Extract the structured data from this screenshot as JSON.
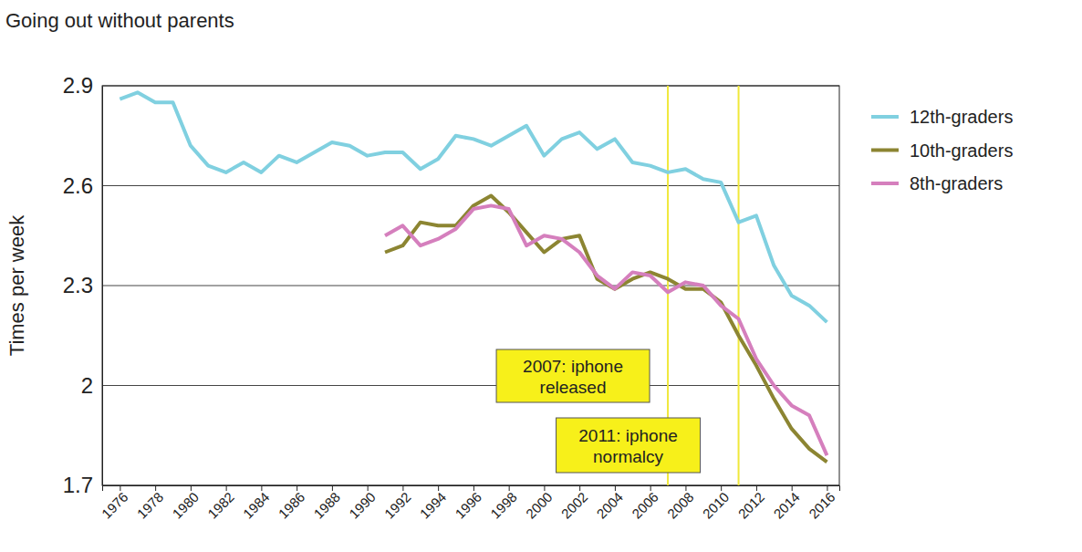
{
  "chart_data": {
    "type": "line",
    "title": "Going out without parents",
    "y_label": "Times per week",
    "x": [
      1976,
      1977,
      1978,
      1979,
      1980,
      1981,
      1982,
      1983,
      1984,
      1985,
      1986,
      1987,
      1988,
      1989,
      1990,
      1991,
      1992,
      1993,
      1994,
      1995,
      1996,
      1997,
      1998,
      1999,
      2000,
      2001,
      2002,
      2003,
      2004,
      2005,
      2006,
      2007,
      2008,
      2009,
      2010,
      2011,
      2012,
      2013,
      2014,
      2015,
      2016
    ],
    "series": [
      {
        "name": "12th-graders",
        "color": "#80d0e0",
        "values": [
          2.86,
          2.88,
          2.85,
          2.85,
          2.72,
          2.66,
          2.64,
          2.67,
          2.64,
          2.69,
          2.67,
          2.7,
          2.73,
          2.72,
          2.69,
          2.7,
          2.7,
          2.65,
          2.68,
          2.75,
          2.74,
          2.72,
          2.75,
          2.78,
          2.69,
          2.74,
          2.76,
          2.71,
          2.74,
          2.67,
          2.66,
          2.64,
          2.65,
          2.62,
          2.61,
          2.49,
          2.51,
          2.36,
          2.27,
          2.24,
          2.19
        ]
      },
      {
        "name": "10th-graders",
        "color": "#8c8532",
        "values": [
          null,
          null,
          null,
          null,
          null,
          null,
          null,
          null,
          null,
          null,
          null,
          null,
          null,
          null,
          null,
          2.4,
          2.42,
          2.49,
          2.48,
          2.48,
          2.54,
          2.57,
          2.52,
          2.46,
          2.4,
          2.44,
          2.45,
          2.32,
          2.29,
          2.32,
          2.34,
          2.32,
          2.29,
          2.29,
          2.25,
          2.15,
          2.06,
          1.96,
          1.87,
          1.81,
          1.77
        ]
      },
      {
        "name": "8th-graders",
        "color": "#d57fbd",
        "values": [
          null,
          null,
          null,
          null,
          null,
          null,
          null,
          null,
          null,
          null,
          null,
          null,
          null,
          null,
          null,
          2.45,
          2.48,
          2.42,
          2.44,
          2.47,
          2.53,
          2.54,
          2.53,
          2.42,
          2.45,
          2.44,
          2.4,
          2.33,
          2.29,
          2.34,
          2.33,
          2.28,
          2.31,
          2.3,
          2.24,
          2.2,
          2.08,
          2.0,
          1.94,
          1.91,
          1.79
        ]
      }
    ],
    "xlim": [
      1975,
      2016.7
    ],
    "xticks": [
      1976,
      1978,
      1980,
      1982,
      1984,
      1986,
      1988,
      1990,
      1992,
      1994,
      1996,
      1998,
      2000,
      2002,
      2004,
      2006,
      2008,
      2010,
      2012,
      2014,
      2016
    ],
    "ylim": [
      1.7,
      2.9
    ],
    "yticks": [
      1.7,
      2,
      2.3,
      2.6,
      2.9
    ],
    "grid": true,
    "legend": "right",
    "annotations": [
      {
        "x": 2007,
        "lines": [
          "2007: iphone",
          "released"
        ]
      },
      {
        "x": 2011,
        "lines": [
          "2011: iphone",
          "normalcy"
        ]
      }
    ]
  }
}
